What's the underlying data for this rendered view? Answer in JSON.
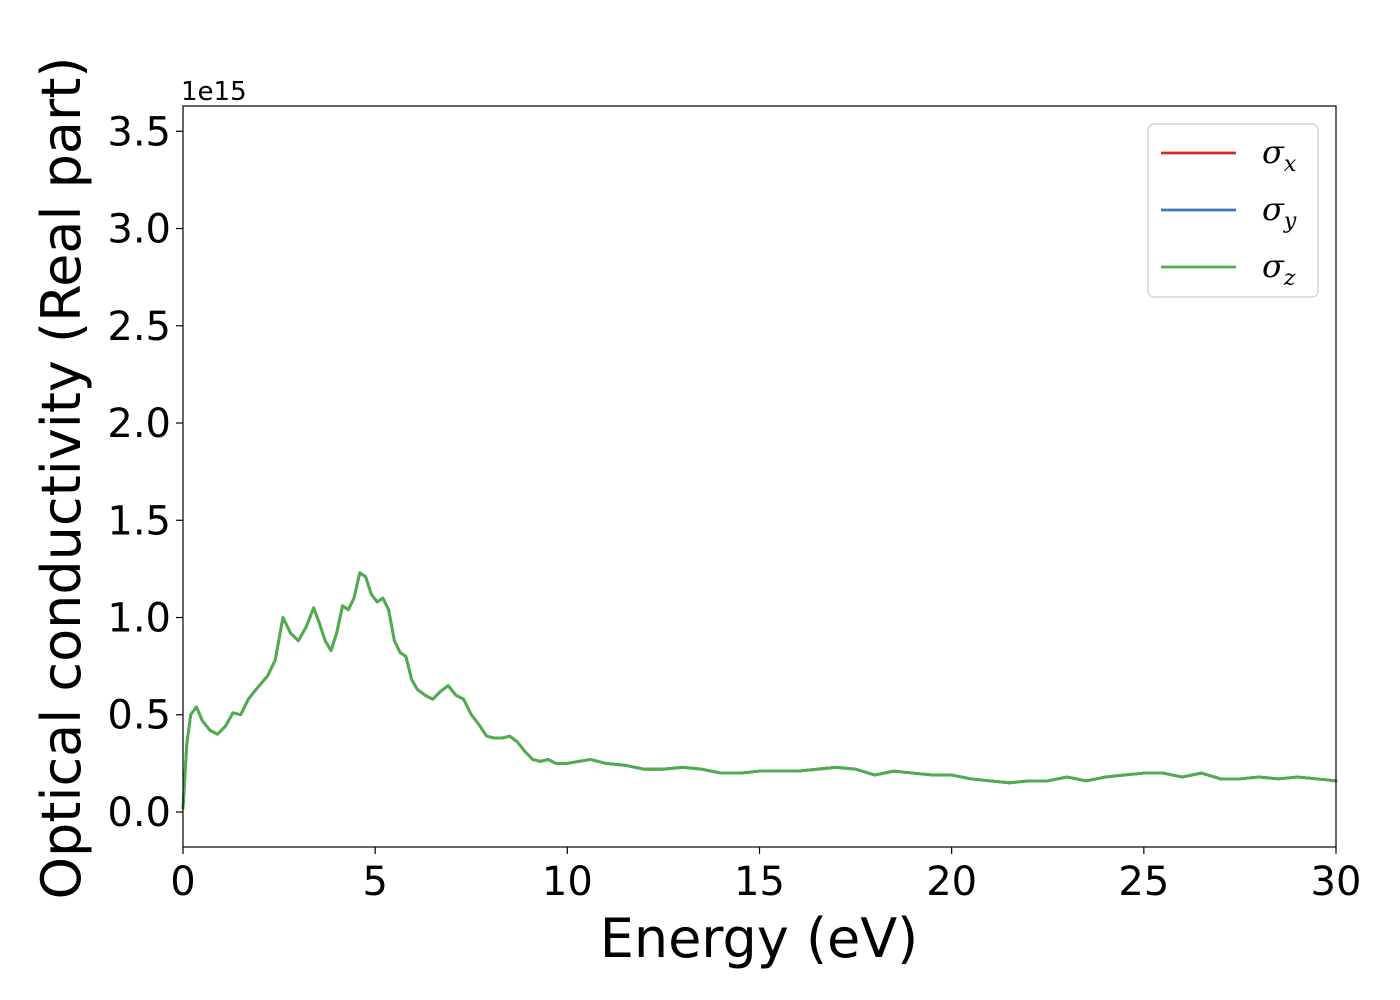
{
  "chart_data": {
    "type": "line",
    "title": "",
    "xlabel": "Energy (eV)",
    "ylabel": "Optical conductivity (Real part)",
    "y_offset_label": "1e15",
    "xlim": [
      0,
      30
    ],
    "ylim": [
      -0.18,
      3.63
    ],
    "x_ticks": [
      0,
      5,
      10,
      15,
      20,
      25,
      30
    ],
    "x_tick_labels": [
      "0",
      "5",
      "10",
      "15",
      "20",
      "25",
      "30"
    ],
    "y_ticks": [
      0.0,
      0.5,
      1.0,
      1.5,
      2.0,
      2.5,
      3.0,
      3.5
    ],
    "y_tick_labels": [
      "0.0",
      "0.5",
      "1.0",
      "1.5",
      "2.0",
      "2.5",
      "3.0",
      "3.5"
    ],
    "grid": false,
    "legend_position": "top-right",
    "x": [
      0,
      0.1,
      0.2,
      0.35,
      0.5,
      0.7,
      0.9,
      1.1,
      1.3,
      1.5,
      1.7,
      1.9,
      2.2,
      2.4,
      2.6,
      2.8,
      3.0,
      3.2,
      3.4,
      3.55,
      3.7,
      3.85,
      4.0,
      4.15,
      4.3,
      4.45,
      4.6,
      4.75,
      4.9,
      5.05,
      5.2,
      5.35,
      5.5,
      5.65,
      5.8,
      5.95,
      6.1,
      6.3,
      6.5,
      6.7,
      6.9,
      7.1,
      7.3,
      7.5,
      7.7,
      7.9,
      8.1,
      8.3,
      8.5,
      8.7,
      8.9,
      9.1,
      9.3,
      9.5,
      9.7,
      10.0,
      10.3,
      10.6,
      11.0,
      11.5,
      12.0,
      12.5,
      13.0,
      13.5,
      14.0,
      14.5,
      15.0,
      15.5,
      16.0,
      16.5,
      17.0,
      17.5,
      18.0,
      18.5,
      19.0,
      19.5,
      20.0,
      20.5,
      21.0,
      21.5,
      22.0,
      22.5,
      23.0,
      23.5,
      24.0,
      24.5,
      25.0,
      25.5,
      26.0,
      26.5,
      27.0,
      27.5,
      28.0,
      28.5,
      29.0,
      29.5,
      30.0
    ],
    "series": [
      {
        "name": "σ_x",
        "label_main": "σ",
        "label_sub": "x",
        "color": "#d62728",
        "values": [
          0.02,
          0.35,
          0.5,
          0.54,
          0.47,
          0.42,
          0.4,
          0.44,
          0.51,
          0.5,
          0.58,
          0.63,
          0.7,
          0.78,
          1.0,
          0.92,
          0.88,
          0.95,
          1.05,
          0.97,
          0.88,
          0.83,
          0.92,
          1.06,
          1.04,
          1.1,
          1.23,
          1.21,
          1.12,
          1.08,
          1.1,
          1.04,
          0.88,
          0.82,
          0.8,
          0.68,
          0.63,
          0.6,
          0.58,
          0.62,
          0.65,
          0.6,
          0.58,
          0.5,
          0.45,
          0.39,
          0.38,
          0.38,
          0.39,
          0.36,
          0.31,
          0.27,
          0.26,
          0.27,
          0.25,
          0.25,
          0.26,
          0.27,
          0.25,
          0.24,
          0.22,
          0.22,
          0.23,
          0.22,
          0.2,
          0.2,
          0.21,
          0.21,
          0.21,
          0.22,
          0.23,
          0.22,
          0.19,
          0.21,
          0.2,
          0.19,
          0.19,
          0.17,
          0.16,
          0.15,
          0.16,
          0.16,
          0.18,
          0.16,
          0.18,
          0.19,
          0.2,
          0.2,
          0.18,
          0.2,
          0.17,
          0.17,
          0.18,
          0.17,
          0.18,
          0.17,
          0.16
        ]
      },
      {
        "name": "σ_y",
        "label_main": "σ",
        "label_sub": "y",
        "color": "#3a78b4",
        "values": [
          0.02,
          0.35,
          0.5,
          0.54,
          0.47,
          0.42,
          0.4,
          0.44,
          0.51,
          0.5,
          0.58,
          0.63,
          0.7,
          0.78,
          1.0,
          0.92,
          0.88,
          0.95,
          1.05,
          0.97,
          0.88,
          0.83,
          0.92,
          1.06,
          1.04,
          1.1,
          1.23,
          1.21,
          1.12,
          1.08,
          1.1,
          1.04,
          0.88,
          0.82,
          0.8,
          0.68,
          0.63,
          0.6,
          0.58,
          0.62,
          0.65,
          0.6,
          0.58,
          0.5,
          0.45,
          0.39,
          0.38,
          0.38,
          0.39,
          0.36,
          0.31,
          0.27,
          0.26,
          0.27,
          0.25,
          0.25,
          0.26,
          0.27,
          0.25,
          0.24,
          0.22,
          0.22,
          0.23,
          0.22,
          0.2,
          0.2,
          0.21,
          0.21,
          0.21,
          0.22,
          0.23,
          0.22,
          0.19,
          0.21,
          0.2,
          0.19,
          0.19,
          0.17,
          0.16,
          0.15,
          0.16,
          0.16,
          0.18,
          0.16,
          0.18,
          0.19,
          0.2,
          0.2,
          0.18,
          0.2,
          0.17,
          0.17,
          0.18,
          0.17,
          0.18,
          0.17,
          0.16
        ]
      },
      {
        "name": "σ_z",
        "label_main": "σ",
        "label_sub": "z",
        "color": "#4daf4a",
        "values": [
          0.02,
          0.35,
          0.5,
          0.54,
          0.47,
          0.42,
          0.4,
          0.44,
          0.51,
          0.5,
          0.58,
          0.63,
          0.7,
          0.78,
          1.0,
          0.92,
          0.88,
          0.95,
          1.05,
          0.97,
          0.88,
          0.83,
          0.92,
          1.06,
          1.04,
          1.1,
          1.23,
          1.21,
          1.12,
          1.08,
          1.1,
          1.04,
          0.88,
          0.82,
          0.8,
          0.68,
          0.63,
          0.6,
          0.58,
          0.62,
          0.65,
          0.6,
          0.58,
          0.5,
          0.45,
          0.39,
          0.38,
          0.38,
          0.39,
          0.36,
          0.31,
          0.27,
          0.26,
          0.27,
          0.25,
          0.25,
          0.26,
          0.27,
          0.25,
          0.24,
          0.22,
          0.22,
          0.23,
          0.22,
          0.2,
          0.2,
          0.21,
          0.21,
          0.21,
          0.22,
          0.23,
          0.22,
          0.19,
          0.21,
          0.2,
          0.19,
          0.19,
          0.17,
          0.16,
          0.15,
          0.16,
          0.16,
          0.18,
          0.16,
          0.18,
          0.19,
          0.2,
          0.2,
          0.18,
          0.2,
          0.17,
          0.17,
          0.18,
          0.17,
          0.18,
          0.17,
          0.16
        ]
      }
    ]
  }
}
